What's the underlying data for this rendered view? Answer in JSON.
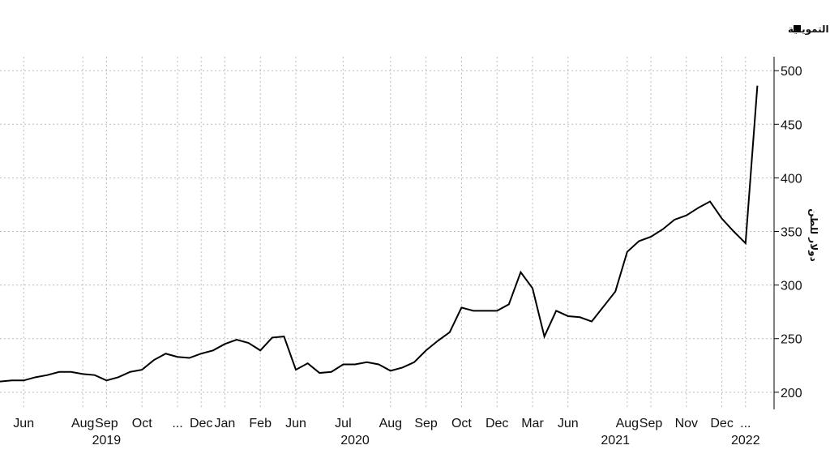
{
  "chart_data": {
    "type": "line",
    "y_label": "دولار للطن",
    "categories": [
      null,
      null,
      "Jun",
      null,
      null,
      null,
      null,
      "Aug",
      null,
      "Sep",
      null,
      null,
      "Oct",
      null,
      null,
      "...",
      null,
      "Dec",
      null,
      "Jan",
      null,
      null,
      "Feb",
      null,
      null,
      "Jun",
      null,
      null,
      null,
      "Jul",
      null,
      null,
      null,
      "Aug",
      null,
      null,
      "Sep",
      null,
      null,
      "Oct",
      null,
      null,
      "Dec",
      null,
      null,
      "Mar",
      null,
      null,
      "Jun",
      null,
      null,
      null,
      null,
      "Aug",
      null,
      "Sep",
      null,
      null,
      "Nov",
      null,
      null,
      "Dec",
      null,
      "...",
      null
    ],
    "years": [
      null,
      null,
      null,
      null,
      null,
      null,
      null,
      null,
      null,
      "2019",
      null,
      null,
      null,
      null,
      null,
      null,
      null,
      null,
      null,
      null,
      null,
      null,
      null,
      null,
      null,
      null,
      null,
      null,
      null,
      null,
      "2020",
      null,
      null,
      null,
      null,
      null,
      null,
      null,
      null,
      null,
      null,
      null,
      null,
      null,
      null,
      null,
      null,
      null,
      null,
      null,
      null,
      null,
      "2021",
      null,
      null,
      null,
      null,
      null,
      null,
      null,
      null,
      null,
      null,
      "2022",
      null
    ],
    "series": [
      {
        "name": "متوسط سعر شراء القمح من قبل الهيئة العامة للسلع التموينية",
        "color": "#000000",
        "values": [
          210,
          211,
          211,
          214,
          216,
          219,
          219,
          217,
          216,
          211,
          214,
          219,
          221,
          230,
          236,
          233,
          232,
          236,
          239,
          245,
          249,
          246,
          239,
          251,
          252,
          221,
          227,
          218,
          219,
          226,
          226,
          228,
          226,
          220,
          223,
          228,
          239,
          248,
          256,
          279,
          276,
          276,
          276,
          282,
          312,
          297,
          252,
          276,
          271,
          270,
          266,
          280,
          294,
          331,
          341,
          345,
          352,
          361,
          365,
          372,
          378,
          362,
          350,
          339,
          486
        ]
      }
    ],
    "ylim": [
      184,
      513
    ],
    "yticks": [
      200,
      250,
      300,
      350,
      400,
      450,
      500
    ],
    "grid": true
  }
}
